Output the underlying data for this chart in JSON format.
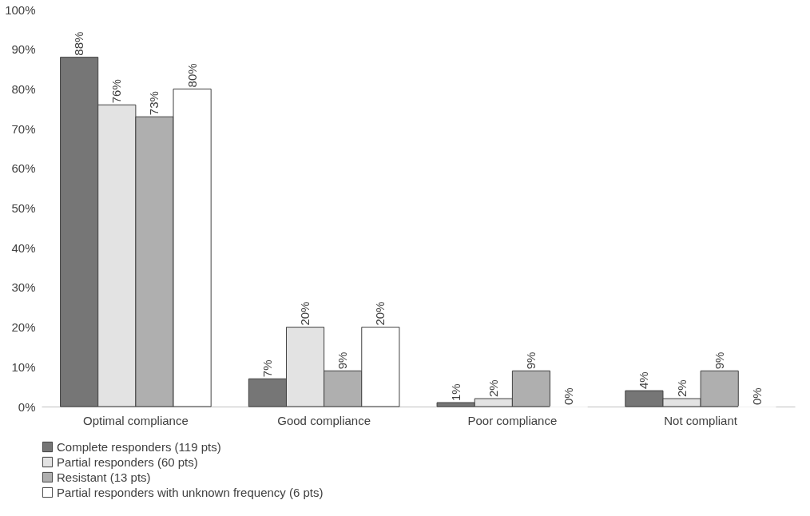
{
  "chart_data": {
    "type": "bar",
    "categories": [
      "Optimal compliance",
      "Good compliance",
      "Poor compliance",
      "Not compliant"
    ],
    "series": [
      {
        "name": "Complete responders (119 pts)",
        "color": "#767676",
        "values": [
          88,
          7,
          1,
          4
        ],
        "value_labels": [
          "88%",
          "7%",
          "1%",
          "4%"
        ]
      },
      {
        "name": "Partial responders (60 pts)",
        "color": "#e3e3e3",
        "values": [
          76,
          20,
          2,
          2
        ],
        "value_labels": [
          "76%",
          "20%",
          "2%",
          "2%"
        ]
      },
      {
        "name": "Resistant (13 pts)",
        "color": "#afafaf",
        "values": [
          73,
          9,
          9,
          9
        ],
        "value_labels": [
          "73%",
          "9%",
          "9%",
          "9%"
        ]
      },
      {
        "name": "Partial responders with unknown frequency (6 pts)",
        "color": "#ffffff",
        "values": [
          80,
          20,
          0,
          0
        ],
        "value_labels": [
          "80%",
          "20%",
          "0%",
          "0%"
        ]
      }
    ],
    "ylim": [
      0,
      100
    ],
    "yticks": [
      {
        "value": 0,
        "label": "0%"
      },
      {
        "value": 10,
        "label": "10%"
      },
      {
        "value": 20,
        "label": "20%"
      },
      {
        "value": 30,
        "label": "30%"
      },
      {
        "value": 40,
        "label": "40%"
      },
      {
        "value": 50,
        "label": "50%"
      },
      {
        "value": 60,
        "label": "60%"
      },
      {
        "value": 70,
        "label": "70%"
      },
      {
        "value": 80,
        "label": "80%"
      },
      {
        "value": 90,
        "label": "90%"
      },
      {
        "value": 100,
        "label": "100%"
      }
    ],
    "grid": false,
    "legend": "bottom"
  }
}
